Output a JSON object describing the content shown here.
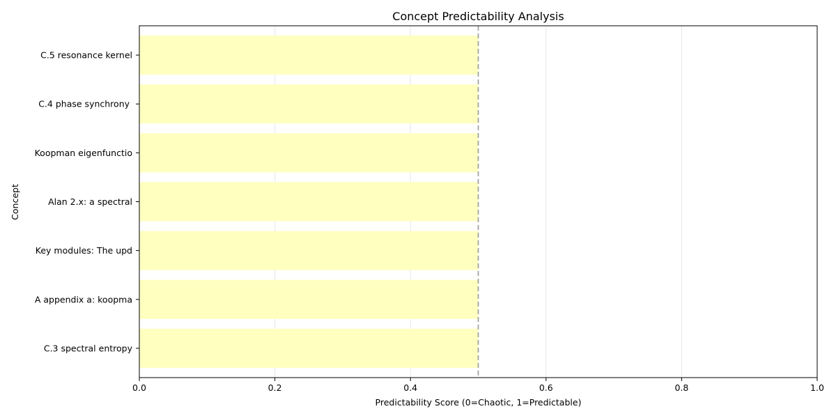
{
  "chart_data": {
    "type": "bar",
    "orientation": "horizontal",
    "title": "Concept Predictability Analysis",
    "xlabel": "Predictability Score (0=Chaotic, 1=Predictable)",
    "ylabel": "Concept",
    "xlim": [
      0,
      1
    ],
    "x_ticks": [
      "0.0",
      "0.2",
      "0.4",
      "0.6",
      "0.8",
      "1.0"
    ],
    "x_tick_values": [
      0,
      0.2,
      0.4,
      0.6,
      0.8,
      1.0
    ],
    "grid": "vertical",
    "threshold_line": 0.5,
    "categories": [
      "C.5 resonance kernel",
      "C.4 phase synchrony ",
      "Koopman eigenfunctio",
      "Alan 2.x: a spectral",
      "Key modules: The upd",
      "A appendix a: koopma",
      "C.3 spectral entropy"
    ],
    "values": [
      0.5,
      0.5,
      0.5,
      0.5,
      0.5,
      0.5,
      0.5
    ],
    "colors": {
      "bar": "#ffffc0",
      "threshold": "#999999",
      "grid": "#e6e6e6",
      "axes": "#000000"
    }
  }
}
